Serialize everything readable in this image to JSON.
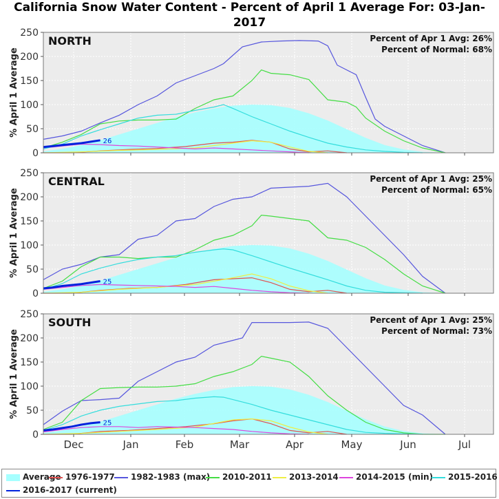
{
  "title": "California Snow Water Content - Percent of April 1 Average For: 03-Jan-2017",
  "chart_data": [
    {
      "type": "area",
      "panel": "NORTH",
      "ylabel": "% April 1 Average",
      "ylim": [
        0,
        250
      ],
      "yticks": [
        "0",
        "50",
        "100",
        "150",
        "200",
        "250"
      ],
      "xticks": [
        "Dec",
        "Jan",
        "Feb",
        "Mar",
        "Apr",
        "May",
        "Jun",
        "Jul"
      ],
      "stat1": "Percent of Apr 1 Avg: 26%",
      "stat2": "Percent of Normal: 68%",
      "current_label": "26",
      "grid": true,
      "series": [
        {
          "name": "Average",
          "x": [
            0,
            10,
            20,
            30,
            40,
            50,
            60,
            70,
            80,
            90,
            100,
            110,
            120,
            130,
            140,
            150,
            160,
            170,
            180,
            190,
            200,
            212
          ],
          "values": [
            3,
            8,
            16,
            26,
            38,
            50,
            62,
            74,
            84,
            92,
            98,
            100,
            99,
            93,
            82,
            67,
            49,
            31,
            16,
            7,
            2,
            0
          ]
        },
        {
          "name": "1976-1977",
          "x": [
            0,
            15,
            30,
            45,
            60,
            75,
            90,
            100,
            110,
            120,
            130,
            140,
            150,
            160
          ],
          "values": [
            0,
            0,
            4,
            7,
            9,
            13,
            20,
            22,
            26,
            22,
            8,
            2,
            4,
            0
          ]
        },
        {
          "name": "1982-1983 (max)",
          "x": [
            0,
            10,
            20,
            30,
            40,
            50,
            60,
            70,
            80,
            90,
            95,
            105,
            115,
            125,
            135,
            145,
            150,
            155,
            160,
            165,
            170,
            175,
            180,
            190,
            200,
            212
          ],
          "values": [
            28,
            35,
            45,
            62,
            78,
            100,
            118,
            145,
            160,
            175,
            185,
            220,
            230,
            232,
            233,
            232,
            222,
            182,
            172,
            162,
            115,
            70,
            55,
            35,
            15,
            0
          ]
        },
        {
          "name": "2010-2011",
          "x": [
            0,
            10,
            20,
            30,
            40,
            50,
            60,
            70,
            80,
            90,
            100,
            110,
            115,
            120,
            130,
            140,
            150,
            160,
            165,
            170,
            180,
            190,
            200,
            212
          ],
          "values": [
            10,
            22,
            38,
            60,
            66,
            68,
            68,
            70,
            92,
            110,
            118,
            150,
            172,
            165,
            162,
            152,
            110,
            105,
            95,
            72,
            45,
            25,
            10,
            0
          ]
        },
        {
          "name": "2013-2014",
          "x": [
            0,
            20,
            40,
            60,
            80,
            100,
            110,
            120,
            130,
            140,
            150
          ],
          "values": [
            0,
            2,
            5,
            7,
            10,
            20,
            25,
            22,
            12,
            3,
            0
          ]
        },
        {
          "name": "2014-2015 (min)",
          "x": [
            0,
            10,
            20,
            30,
            40,
            50,
            60,
            70,
            80,
            90,
            100,
            110,
            120,
            130,
            140
          ],
          "values": [
            10,
            14,
            18,
            17,
            15,
            14,
            12,
            10,
            8,
            10,
            8,
            6,
            4,
            2,
            0
          ]
        },
        {
          "name": "2015-2016",
          "x": [
            0,
            10,
            20,
            30,
            40,
            50,
            60,
            70,
            80,
            90,
            95,
            100,
            110,
            120,
            130,
            140,
            150,
            160,
            170,
            180,
            190,
            200
          ],
          "values": [
            8,
            18,
            35,
            48,
            60,
            72,
            78,
            80,
            88,
            95,
            100,
            92,
            75,
            60,
            45,
            32,
            20,
            12,
            6,
            3,
            1,
            0
          ]
        },
        {
          "name": "2016-2017 (current)",
          "x": [
            0,
            5,
            10,
            15,
            20,
            25,
            30
          ],
          "values": [
            12,
            14,
            16,
            18,
            20,
            23,
            26
          ]
        }
      ]
    },
    {
      "type": "area",
      "panel": "CENTRAL",
      "ylabel": "% April 1 Average",
      "ylim": [
        0,
        250
      ],
      "yticks": [
        "0",
        "50",
        "100",
        "150",
        "200",
        "250"
      ],
      "xticks": [
        "Dec",
        "Jan",
        "Feb",
        "Mar",
        "Apr",
        "May",
        "Jun",
        "Jul"
      ],
      "stat1": "Percent of Apr 1 Avg: 25%",
      "stat2": "Percent of Normal: 65%",
      "current_label": "25",
      "grid": true,
      "series": [
        {
          "name": "Average",
          "x": [
            0,
            10,
            20,
            30,
            40,
            50,
            60,
            70,
            80,
            90,
            100,
            110,
            120,
            130,
            140,
            150,
            160,
            170,
            180,
            190,
            200,
            212
          ],
          "values": [
            3,
            8,
            16,
            26,
            38,
            50,
            62,
            74,
            84,
            92,
            98,
            100,
            99,
            93,
            82,
            67,
            49,
            31,
            16,
            7,
            2,
            0
          ]
        },
        {
          "name": "1976-1977",
          "x": [
            0,
            15,
            30,
            45,
            60,
            75,
            90,
            100,
            110,
            120,
            130,
            140,
            150,
            160
          ],
          "values": [
            0,
            0,
            6,
            10,
            12,
            18,
            28,
            30,
            32,
            22,
            8,
            3,
            6,
            0
          ]
        },
        {
          "name": "1982-1983 (max)",
          "x": [
            0,
            10,
            20,
            30,
            40,
            50,
            60,
            70,
            80,
            90,
            100,
            110,
            120,
            130,
            140,
            150,
            160,
            170,
            180,
            190,
            200,
            212
          ],
          "values": [
            28,
            50,
            60,
            75,
            80,
            112,
            120,
            150,
            155,
            180,
            195,
            200,
            218,
            220,
            222,
            228,
            200,
            160,
            120,
            80,
            35,
            0
          ]
        },
        {
          "name": "2010-2011",
          "x": [
            0,
            10,
            20,
            30,
            40,
            50,
            60,
            70,
            80,
            90,
            100,
            110,
            115,
            120,
            130,
            140,
            150,
            160,
            170,
            180,
            190,
            200,
            212
          ],
          "values": [
            10,
            25,
            55,
            75,
            75,
            72,
            75,
            75,
            90,
            110,
            120,
            140,
            162,
            160,
            155,
            150,
            115,
            110,
            95,
            70,
            40,
            15,
            0
          ]
        },
        {
          "name": "2013-2014",
          "x": [
            0,
            20,
            40,
            60,
            80,
            100,
            110,
            120,
            130,
            140,
            150
          ],
          "values": [
            0,
            2,
            8,
            12,
            18,
            32,
            40,
            30,
            15,
            5,
            0
          ]
        },
        {
          "name": "2014-2015 (min)",
          "x": [
            0,
            10,
            20,
            30,
            40,
            50,
            60,
            70,
            80,
            90,
            100,
            110,
            120,
            130,
            140
          ],
          "values": [
            8,
            12,
            16,
            18,
            17,
            16,
            15,
            14,
            12,
            14,
            10,
            6,
            3,
            1,
            0
          ]
        },
        {
          "name": "2015-2016",
          "x": [
            0,
            10,
            20,
            30,
            40,
            50,
            60,
            70,
            80,
            90,
            95,
            100,
            110,
            120,
            130,
            140,
            150,
            160,
            170,
            180,
            190,
            200
          ],
          "values": [
            8,
            20,
            40,
            52,
            62,
            70,
            75,
            78,
            85,
            90,
            92,
            90,
            78,
            65,
            52,
            40,
            28,
            15,
            6,
            2,
            1,
            0
          ]
        },
        {
          "name": "2016-2017 (current)",
          "x": [
            0,
            5,
            10,
            15,
            20,
            25,
            30
          ],
          "values": [
            10,
            12,
            15,
            17,
            19,
            22,
            25
          ]
        }
      ]
    },
    {
      "type": "area",
      "panel": "SOUTH",
      "ylabel": "% April 1 Average",
      "ylim": [
        0,
        250
      ],
      "yticks": [
        "0",
        "50",
        "100",
        "150",
        "200",
        "250"
      ],
      "xticks": [
        "Dec",
        "Jan",
        "Feb",
        "Mar",
        "Apr",
        "May",
        "Jun",
        "Jul"
      ],
      "stat1": "Percent of Apr 1 Avg: 25%",
      "stat2": "Percent of Normal: 73%",
      "current_label": "25",
      "grid": true,
      "series": [
        {
          "name": "Average",
          "x": [
            0,
            10,
            20,
            30,
            40,
            50,
            60,
            70,
            80,
            90,
            100,
            110,
            120,
            130,
            140,
            150,
            160,
            170,
            180,
            190,
            200,
            212
          ],
          "values": [
            3,
            8,
            16,
            26,
            38,
            50,
            62,
            74,
            84,
            92,
            98,
            100,
            99,
            93,
            82,
            67,
            49,
            31,
            16,
            7,
            2,
            0
          ]
        },
        {
          "name": "1976-1977",
          "x": [
            0,
            15,
            30,
            45,
            60,
            75,
            90,
            100,
            110,
            120,
            130,
            140,
            150,
            160
          ],
          "values": [
            0,
            0,
            6,
            8,
            12,
            16,
            22,
            28,
            32,
            22,
            8,
            3,
            6,
            0
          ]
        },
        {
          "name": "1982-1983 (max)",
          "x": [
            0,
            10,
            20,
            30,
            40,
            50,
            60,
            70,
            80,
            90,
            100,
            105,
            110,
            120,
            130,
            140,
            150,
            160,
            170,
            180,
            190,
            200,
            212
          ],
          "values": [
            20,
            48,
            70,
            72,
            75,
            110,
            130,
            150,
            160,
            185,
            195,
            200,
            232,
            232,
            232,
            233,
            220,
            180,
            140,
            100,
            60,
            40,
            0
          ]
        },
        {
          "name": "2010-2011",
          "x": [
            0,
            10,
            20,
            30,
            40,
            50,
            60,
            70,
            80,
            90,
            100,
            110,
            115,
            120,
            130,
            140,
            150,
            160,
            170,
            180,
            190,
            200,
            212
          ],
          "values": [
            10,
            25,
            70,
            95,
            97,
            98,
            98,
            100,
            105,
            120,
            130,
            145,
            162,
            158,
            150,
            120,
            80,
            50,
            25,
            10,
            3,
            0,
            0
          ]
        },
        {
          "name": "2013-2014",
          "x": [
            0,
            20,
            40,
            60,
            80,
            100,
            110,
            120,
            130,
            140,
            150
          ],
          "values": [
            0,
            2,
            6,
            10,
            15,
            30,
            32,
            28,
            15,
            5,
            0
          ]
        },
        {
          "name": "2014-2015 (min)",
          "x": [
            0,
            10,
            20,
            30,
            40,
            50,
            60,
            70,
            80,
            90,
            100,
            110,
            120,
            130,
            140
          ],
          "values": [
            5,
            10,
            14,
            16,
            16,
            14,
            16,
            15,
            14,
            12,
            10,
            6,
            3,
            1,
            0
          ]
        },
        {
          "name": "2015-2016",
          "x": [
            0,
            10,
            20,
            30,
            40,
            50,
            60,
            70,
            80,
            90,
            95,
            100,
            110,
            120,
            130,
            140,
            150,
            160,
            170,
            180,
            190,
            200
          ],
          "values": [
            8,
            20,
            38,
            50,
            58,
            63,
            68,
            70,
            75,
            78,
            77,
            72,
            62,
            50,
            40,
            30,
            20,
            10,
            4,
            2,
            1,
            0
          ]
        },
        {
          "name": "2016-2017 (current)",
          "x": [
            0,
            5,
            10,
            15,
            20,
            25,
            30
          ],
          "values": [
            8,
            10,
            13,
            16,
            20,
            23,
            25
          ]
        }
      ]
    }
  ],
  "colors": {
    "Average": "#a6ffff",
    "1976-1977": "#e05050",
    "1982-1983 (max)": "#5555dd",
    "2010-2011": "#44dd44",
    "2013-2014": "#eeee44",
    "2014-2015 (min)": "#dd44dd",
    "2015-2016": "#33dddd",
    "2016-2017 (current)": "#0022dd"
  },
  "legend": [
    {
      "label": "Average"
    },
    {
      "label": "1976-1977"
    },
    {
      "label": "1982-1983 (max)"
    },
    {
      "label": "2010-2011"
    },
    {
      "label": "2013-2014"
    },
    {
      "label": "2014-2015 (min)"
    },
    {
      "label": "2015-2016"
    },
    {
      "label": "2016-2017 (current)"
    }
  ]
}
